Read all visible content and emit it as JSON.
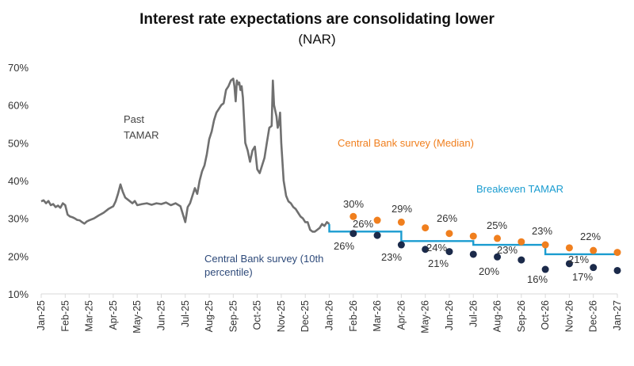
{
  "chart_data": {
    "type": "line",
    "title": "Interest rate expectations are consolidating lower",
    "subtitle": "(NAR)",
    "xlabel": "",
    "ylabel": "",
    "ylim": [
      10,
      70
    ],
    "yticks": [
      "10%",
      "20%",
      "30%",
      "40%",
      "50%",
      "60%",
      "70%"
    ],
    "yticks_values": [
      10,
      20,
      30,
      40,
      50,
      60,
      70
    ],
    "grid": false,
    "x_categories": [
      "Jan-25",
      "Feb-25",
      "Mar-25",
      "Apr-25",
      "May-25",
      "Jun-25",
      "Jul-25",
      "Aug-25",
      "Sep-25",
      "Oct-25",
      "Nov-25",
      "Dec-25",
      "Jan-26",
      "Feb-26",
      "Mar-26",
      "Apr-26",
      "May-26",
      "Jun-26",
      "Jul-26",
      "Aug-26",
      "Sep-26",
      "Oct-26",
      "Nov-26",
      "Dec-26",
      "Jan-27"
    ],
    "colors": {
      "past_tamar": "#707070",
      "median": "#F07F1E",
      "p10": "#1B2A4A",
      "breakeven": "#1A9CD0"
    },
    "series": [
      {
        "name": "Past TAMAR",
        "type": "line",
        "x_month_index": [
          0,
          0.1,
          0.2,
          0.3,
          0.4,
          0.5,
          0.6,
          0.7,
          0.8,
          0.9,
          1.0,
          1.1,
          1.2,
          1.3,
          1.4,
          1.5,
          1.6,
          1.7,
          1.8,
          1.9,
          2.0,
          2.2,
          2.4,
          2.6,
          2.8,
          3.0,
          3.1,
          3.2,
          3.3,
          3.4,
          3.5,
          3.6,
          3.7,
          3.8,
          3.9,
          4.0,
          4.2,
          4.4,
          4.6,
          4.8,
          5.0,
          5.2,
          5.4,
          5.6,
          5.8,
          6.0,
          6.1,
          6.2,
          6.3,
          6.4,
          6.5,
          6.6,
          6.7,
          6.8,
          6.9,
          7.0,
          7.1,
          7.2,
          7.3,
          7.4,
          7.5,
          7.6,
          7.7,
          7.8,
          7.9,
          8.0,
          8.05,
          8.1,
          8.15,
          8.2,
          8.25,
          8.3,
          8.35,
          8.4,
          8.5,
          8.6,
          8.7,
          8.8,
          8.9,
          9.0,
          9.1,
          9.2,
          9.3,
          9.4,
          9.5,
          9.6,
          9.65,
          9.7,
          9.8,
          9.85,
          9.9,
          9.95,
          10.0,
          10.05,
          10.1,
          10.2,
          10.3,
          10.4,
          10.5,
          10.6,
          10.7,
          10.8,
          10.9,
          11.0,
          11.1,
          11.2,
          11.3,
          11.4,
          11.5,
          11.6,
          11.7,
          11.8,
          11.9,
          12.0
        ],
        "values": [
          34.5,
          34.8,
          34.0,
          34.6,
          33.5,
          33.8,
          33.0,
          33.4,
          32.8,
          34.0,
          33.5,
          31.0,
          30.5,
          30.3,
          30.0,
          29.6,
          29.5,
          29.0,
          28.6,
          29.2,
          29.5,
          30.0,
          30.8,
          31.5,
          32.5,
          33.2,
          34.5,
          36.5,
          39.0,
          37.0,
          35.5,
          35.0,
          34.5,
          34.0,
          34.6,
          33.5,
          33.8,
          34.0,
          33.6,
          34.0,
          33.8,
          34.2,
          33.5,
          34.0,
          33.2,
          29.0,
          33.0,
          34.0,
          36.0,
          38.0,
          36.5,
          40.0,
          42.5,
          44.0,
          47.0,
          51.0,
          53.0,
          56.0,
          58.0,
          59.0,
          60.0,
          60.5,
          64.0,
          65.0,
          66.5,
          67.0,
          65.0,
          61.0,
          66.5,
          65.5,
          66.0,
          64.0,
          65.0,
          62.0,
          50.0,
          48.0,
          45.0,
          48.0,
          49.0,
          43.0,
          42.0,
          44.0,
          46.0,
          50.0,
          54.0,
          54.5,
          66.5,
          60.0,
          57.0,
          54.0,
          55.0,
          58.0,
          50.0,
          45.0,
          40.0,
          36.0,
          34.5,
          34.0,
          33.0,
          32.5,
          31.5,
          30.5,
          30.0,
          29.0,
          29.0,
          27.0,
          26.5,
          26.5,
          27.0,
          27.5,
          28.5,
          28.0,
          29.0,
          28.5
        ]
      },
      {
        "name": "Breakeven TAMAR",
        "type": "step",
        "x_month_index": [
          12.0,
          15.0,
          18.0,
          21.0,
          24.0
        ],
        "values": [
          26.5,
          24.0,
          23.0,
          20.5,
          20.5
        ]
      },
      {
        "name": "Central Bank survey (Median)",
        "type": "scatter",
        "x_month_index": [
          13,
          14,
          15,
          16,
          17,
          18,
          19,
          20,
          21,
          22,
          23,
          24
        ],
        "values": [
          30.5,
          29.5,
          29.0,
          27.5,
          26.0,
          25.3,
          24.7,
          23.8,
          23.0,
          22.2,
          21.5,
          21.0
        ],
        "labels": [
          {
            "x_month_index": 13,
            "text": "30%"
          },
          {
            "x_month_index": 15,
            "text": "29%"
          },
          {
            "x_month_index": 17,
            "text": "26%"
          },
          {
            "x_month_index": 19,
            "text": "25%"
          },
          {
            "x_month_index": 21,
            "text": "23%"
          },
          {
            "x_month_index": 23,
            "text": "22%"
          }
        ]
      },
      {
        "name": "Central Bank survey (10th percentile)",
        "type": "scatter",
        "x_month_index": [
          13,
          14,
          15,
          16,
          17,
          18,
          19,
          20,
          21,
          22,
          23,
          24
        ],
        "values": [
          26.0,
          25.5,
          23.0,
          21.8,
          21.2,
          20.5,
          19.8,
          19.0,
          16.5,
          18.0,
          17.0,
          16.2
        ],
        "labels": [
          {
            "x_month_index": 12.3,
            "text": "26%",
            "below": true
          },
          {
            "x_month_index": 13,
            "text": "26%",
            "above": true
          },
          {
            "x_month_index": 15,
            "text": "23%",
            "below": true
          },
          {
            "x_month_index": 16.5,
            "text": "24%",
            "above": true
          },
          {
            "x_month_index": 16.5,
            "text": "21%",
            "below": true
          },
          {
            "x_month_index": 18.7,
            "text": "20%",
            "below": true
          },
          {
            "x_month_index": 19.7,
            "text": "23%",
            "above": true
          },
          {
            "x_month_index": 21,
            "text": "16%",
            "below": true
          },
          {
            "x_month_index": 22.2,
            "text": "21%",
            "above": true
          },
          {
            "x_month_index": 22.9,
            "text": "17%",
            "below": true
          }
        ]
      }
    ],
    "annotations": [
      {
        "text_lines": [
          "Past",
          "TAMAR"
        ],
        "series": "Past TAMAR",
        "position": "upper-left"
      },
      {
        "text_lines": [
          "Central Bank survey (Median)"
        ],
        "series": "Central Bank survey (Median)",
        "position": "upper-right"
      },
      {
        "text_lines": [
          "Breakeven TAMAR"
        ],
        "series": "Breakeven TAMAR",
        "position": "right"
      },
      {
        "text_lines": [
          "Central Bank survey (10th",
          "percentile)"
        ],
        "series": "Central Bank survey (10th percentile)",
        "position": "lower-middle"
      }
    ],
    "legend": "none (inline annotations)"
  }
}
